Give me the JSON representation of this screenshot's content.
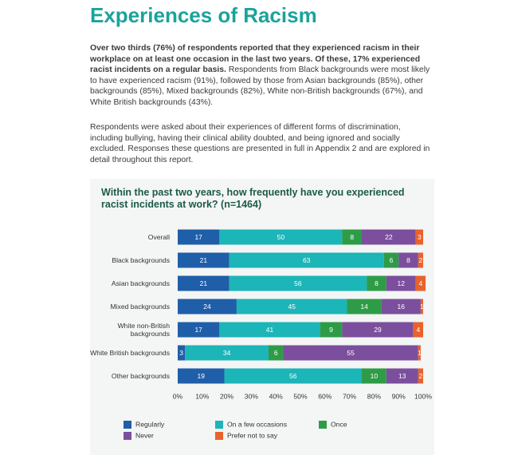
{
  "header": {
    "title": "Experiences of Racism"
  },
  "paragraphs": [
    {
      "bold": "Over two thirds (76%) of respondents reported that they experienced racism in their workplace on at least one occasion in the last two years. Of these, 17% experienced racist incidents on a regular basis.",
      "text": "Respondents from Black backgrounds were most likely to have experienced racism (91%), followed by those from Asian backgrounds (85%), other backgrounds (85%), Mixed backgrounds (82%), White non-British backgrounds (67%), and White British backgrounds (43%)."
    },
    {
      "text": "Respondents were asked about their experiences of different forms of discrimination, including bullying, having their clinical ability doubted, and being ignored and socially excluded. Responses these questions are presented in full in Appendix 2 and are explored in detail throughout this report."
    }
  ],
  "chart_data": {
    "type": "bar",
    "orientation": "horizontal",
    "stacked": true,
    "title": "Within the past two years, how frequently have you experienced racist incidents at work? (n=1464)",
    "categories": [
      "Overall",
      "Black backgrounds",
      "Asian backgrounds",
      "Mixed backgrounds",
      "White non-British backgrounds",
      "White British backgrounds",
      "Other backgrounds"
    ],
    "series": [
      {
        "name": "Regularly",
        "color": "#1f5ea8",
        "values": [
          17,
          21,
          21,
          24,
          17,
          3,
          19
        ]
      },
      {
        "name": "On a few occasions",
        "color": "#1cb5b8",
        "values": [
          50,
          63,
          56,
          45,
          41,
          34,
          56
        ]
      },
      {
        "name": "Once",
        "color": "#2e9c47",
        "values": [
          8,
          6,
          8,
          14,
          9,
          6,
          10
        ]
      },
      {
        "name": "Never",
        "color": "#7b4f9d",
        "values": [
          22,
          8,
          12,
          16,
          29,
          55,
          13
        ]
      },
      {
        "name": "Prefer not to say",
        "color": "#e8622b",
        "values": [
          3,
          2,
          4,
          1,
          4,
          1,
          2
        ]
      }
    ],
    "xlim": [
      0,
      100
    ],
    "xticks": [
      {
        "value": 0,
        "label": "0%"
      },
      {
        "value": 10,
        "label": "10%"
      },
      {
        "value": 20,
        "label": "20%"
      },
      {
        "value": 30,
        "label": "30%"
      },
      {
        "value": 40,
        "label": "40%"
      },
      {
        "value": 50,
        "label": "50%"
      },
      {
        "value": 60,
        "label": "60%"
      },
      {
        "value": 70,
        "label": "70%"
      },
      {
        "value": 80,
        "label": "80%"
      },
      {
        "value": 90,
        "label": "90%"
      },
      {
        "value": 100,
        "label": "100%"
      }
    ],
    "legend": "bottom"
  }
}
